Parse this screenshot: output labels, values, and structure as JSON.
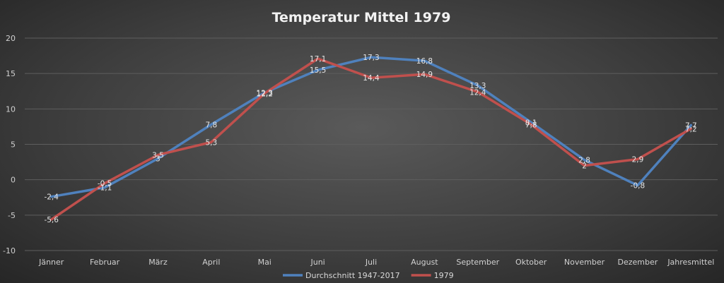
{
  "chart_data": {
    "type": "line",
    "title": "Temperatur Mittel 1979",
    "categories": [
      "Jänner",
      "Februar",
      "März",
      "April",
      "Mai",
      "Juni",
      "Juli",
      "August",
      "September",
      "Oktober",
      "November",
      "Dezember",
      "Jahresmittel"
    ],
    "series": [
      {
        "name": "Durchschnitt 1947-2017",
        "color": "#4f81bd",
        "values": [
          -2.4,
          -1.1,
          3,
          7.8,
          12.3,
          15.5,
          17.3,
          16.8,
          13.3,
          8.1,
          2.8,
          -0.8,
          7.7
        ],
        "labels": [
          "-2,4",
          "-1,1",
          "3",
          "7,8",
          "12,3",
          "15,5",
          "17,3",
          "16,8",
          "13,3",
          "8,1",
          "2,8",
          "-0,8",
          "7,7"
        ]
      },
      {
        "name": "1979",
        "color": "#c0504d",
        "values": [
          -5.6,
          -0.5,
          3.5,
          5.3,
          12.2,
          17.1,
          14.4,
          14.9,
          12.4,
          7.8,
          2,
          2.9,
          7.2
        ],
        "labels": [
          "-5,6",
          "-0,5",
          "3,5",
          "5,3",
          "12,2",
          "17,1",
          "14,4",
          "14,9",
          "12,4",
          "7,8",
          "2",
          "2,9",
          "7,2"
        ]
      }
    ],
    "ylim": [
      -10,
      20
    ],
    "yticks": [
      -10,
      -5,
      0,
      5,
      10,
      15,
      20
    ],
    "grid": true,
    "legend_position": "bottom"
  }
}
